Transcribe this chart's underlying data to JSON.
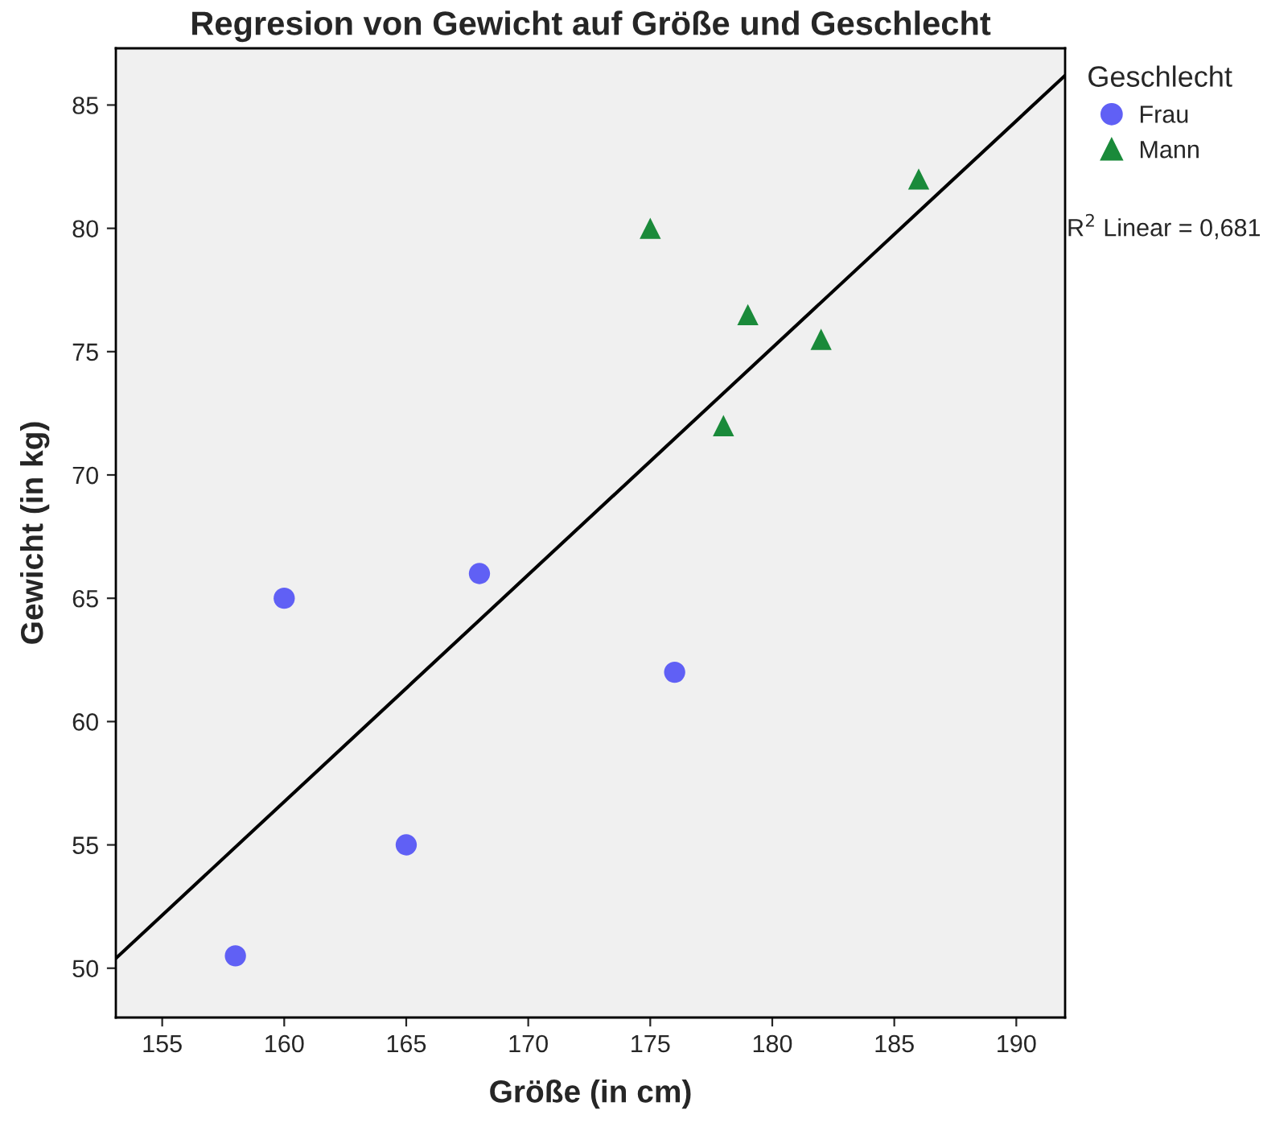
{
  "chart_data": {
    "type": "scatter",
    "title": "Regresion von Gewicht auf Größe und Geschlecht",
    "xlabel": "Größe (in cm)",
    "ylabel": "Gewicht (in kg)",
    "legend_title": "Geschlecht",
    "series": [
      {
        "name": "Frau",
        "color": "#6060f5",
        "marker": "circle",
        "x": [
          158,
          160,
          165,
          168,
          176
        ],
        "values": [
          50.5,
          65,
          55,
          66,
          62
        ]
      },
      {
        "name": "Mann",
        "color": "#1a8a3a",
        "marker": "triangle",
        "x": [
          175,
          178,
          179,
          182,
          186
        ],
        "values": [
          80,
          72,
          76.5,
          75.5,
          82
        ]
      },
      {
        "type": "line",
        "color": "#000000",
        "x": [
          153.1,
          192
        ],
        "values": [
          50.4,
          86.2
        ]
      }
    ],
    "annotations": [
      "R$^{2}$ Linear = 0,681"
    ],
    "xlim": [
      153.1,
      192
    ],
    "ylim": [
      48,
      87.3
    ],
    "xticks": [
      155,
      160,
      165,
      170,
      175,
      180,
      185,
      190
    ],
    "yticks": [
      50,
      55,
      60,
      65,
      70,
      75,
      80,
      85
    ],
    "grid": false,
    "legend": "top right"
  }
}
